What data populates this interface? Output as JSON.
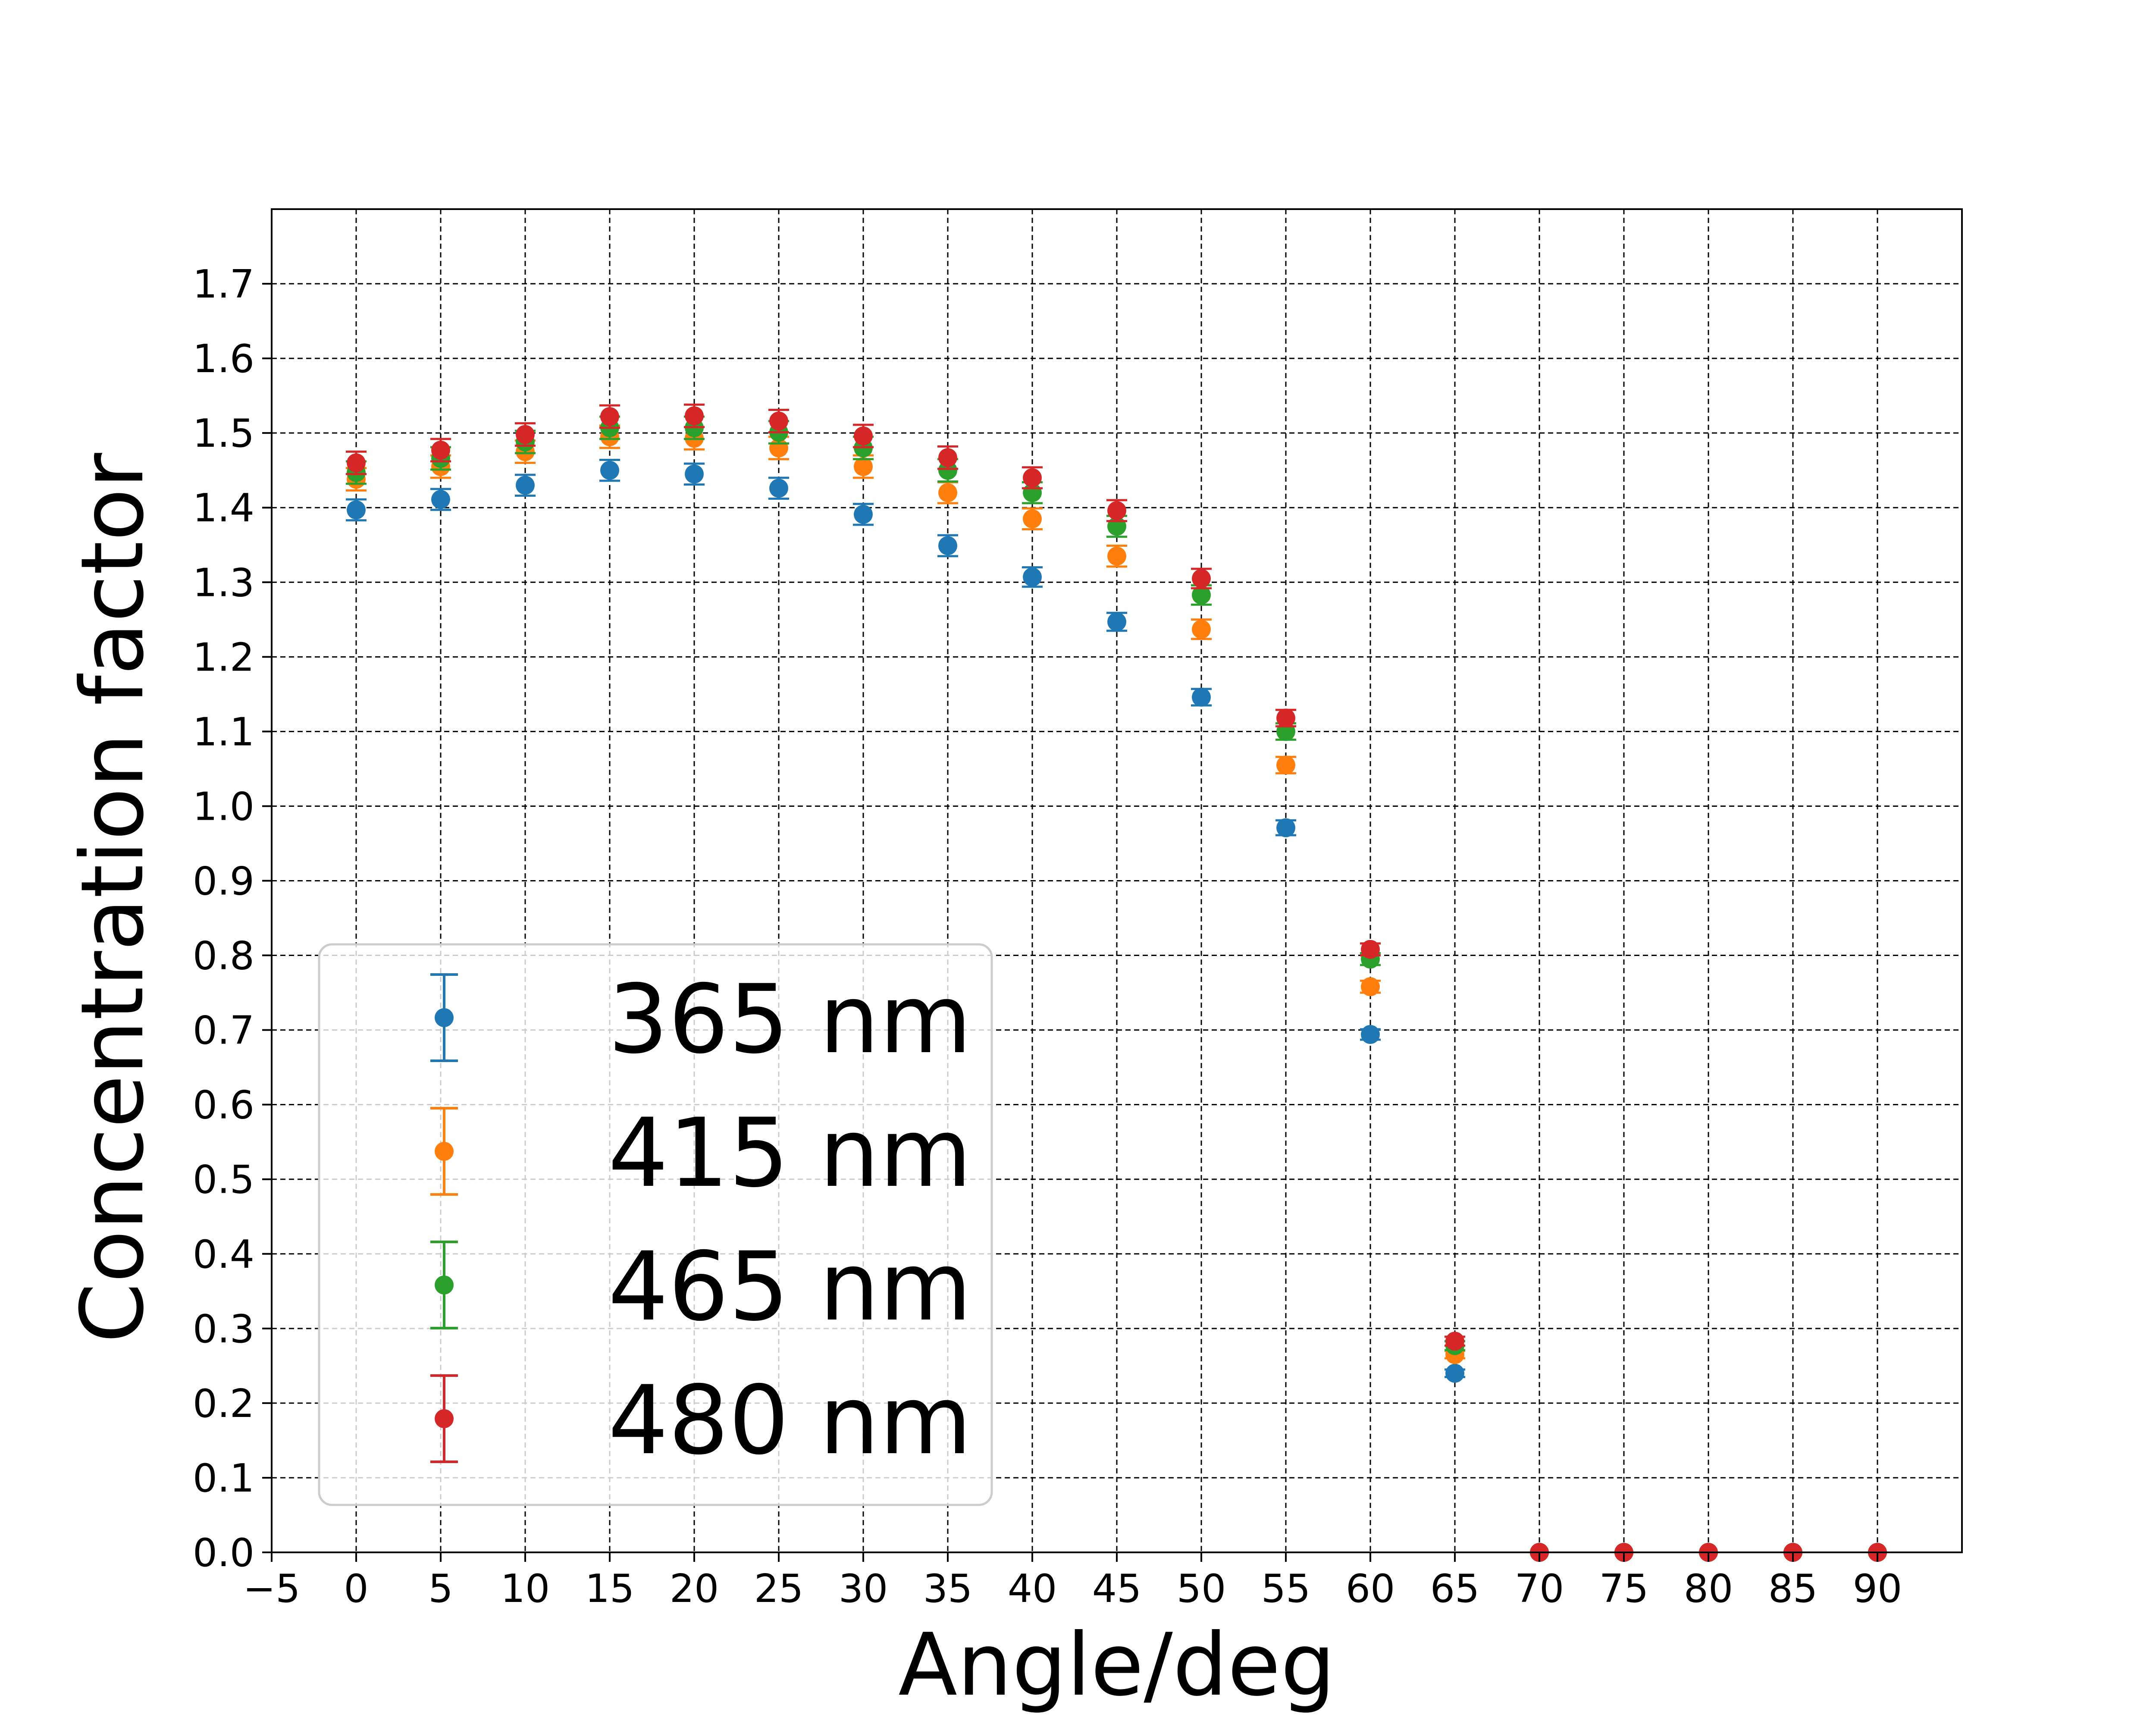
{
  "chart_data": {
    "type": "scatter",
    "title": "",
    "xlabel": "Angle/deg",
    "ylabel": "Concentration factor",
    "xlim": [
      -5,
      95
    ],
    "ylim": [
      0.0,
      1.8
    ],
    "x_ticks": [
      -5,
      0,
      5,
      10,
      15,
      20,
      25,
      30,
      35,
      40,
      45,
      50,
      55,
      60,
      65,
      70,
      75,
      80,
      85,
      90
    ],
    "x_tick_labels": [
      "−5",
      "0",
      "5",
      "10",
      "15",
      "20",
      "25",
      "30",
      "35",
      "40",
      "45",
      "50",
      "55",
      "60",
      "65",
      "70",
      "75",
      "80",
      "85",
      "90"
    ],
    "y_ticks": [
      0.0,
      0.1,
      0.2,
      0.3,
      0.4,
      0.5,
      0.6,
      0.7,
      0.8,
      0.9,
      1.0,
      1.1,
      1.2,
      1.3,
      1.4,
      1.5,
      1.6,
      1.7
    ],
    "y_tick_labels": [
      "0.0",
      "0.1",
      "0.2",
      "0.3",
      "0.4",
      "0.5",
      "0.6",
      "0.7",
      "0.8",
      "0.9",
      "1.0",
      "1.1",
      "1.2",
      "1.3",
      "1.4",
      "1.5",
      "1.6",
      "1.7"
    ],
    "grid": true,
    "legend_position": "lower-left",
    "x": [
      0,
      5,
      10,
      15,
      20,
      25,
      30,
      35,
      40,
      45,
      50,
      55,
      60,
      65,
      70,
      75,
      80,
      85,
      90
    ],
    "series": [
      {
        "name": "365 nm",
        "color": "#1f77b4",
        "values": [
          1.397,
          1.411,
          1.43,
          1.45,
          1.445,
          1.426,
          1.391,
          1.349,
          1.307,
          1.247,
          1.146,
          0.971,
          0.694,
          0.24,
          0.0,
          0.0,
          0.0,
          0.0,
          0.0
        ],
        "errors": [
          0.014,
          0.014,
          0.014,
          0.014,
          0.014,
          0.014,
          0.014,
          0.014,
          0.013,
          0.012,
          0.011,
          0.01,
          0.007,
          0.005,
          0.0,
          0.0,
          0.0,
          0.0,
          0.0
        ]
      },
      {
        "name": "415 nm",
        "color": "#ff7f0e",
        "values": [
          1.438,
          1.455,
          1.475,
          1.495,
          1.493,
          1.48,
          1.455,
          1.42,
          1.385,
          1.335,
          1.237,
          1.055,
          0.758,
          0.265,
          0.0,
          0.0,
          0.0,
          0.0,
          0.0
        ],
        "errors": [
          0.015,
          0.015,
          0.015,
          0.015,
          0.015,
          0.015,
          0.015,
          0.014,
          0.014,
          0.014,
          0.013,
          0.011,
          0.008,
          0.005,
          0.0,
          0.0,
          0.0,
          0.0,
          0.0
        ]
      },
      {
        "name": "465 nm",
        "color": "#2ca02c",
        "values": [
          1.447,
          1.466,
          1.488,
          1.507,
          1.507,
          1.501,
          1.48,
          1.45,
          1.42,
          1.375,
          1.283,
          1.1,
          0.795,
          0.277,
          0.0,
          0.0,
          0.0,
          0.0,
          0.0
        ],
        "errors": [
          0.015,
          0.015,
          0.015,
          0.015,
          0.015,
          0.015,
          0.015,
          0.015,
          0.014,
          0.014,
          0.013,
          0.011,
          0.008,
          0.006,
          0.0,
          0.0,
          0.0,
          0.0,
          0.0
        ]
      },
      {
        "name": "480 nm",
        "color": "#d62728",
        "values": [
          1.46,
          1.477,
          1.498,
          1.522,
          1.523,
          1.516,
          1.496,
          1.467,
          1.44,
          1.396,
          1.305,
          1.118,
          0.808,
          0.283,
          0.0,
          0.0,
          0.0,
          0.0,
          0.0
        ],
        "errors": [
          0.015,
          0.015,
          0.015,
          0.015,
          0.015,
          0.015,
          0.015,
          0.015,
          0.014,
          0.014,
          0.013,
          0.011,
          0.008,
          0.006,
          0.0,
          0.0,
          0.0,
          0.0,
          0.0
        ]
      }
    ]
  }
}
